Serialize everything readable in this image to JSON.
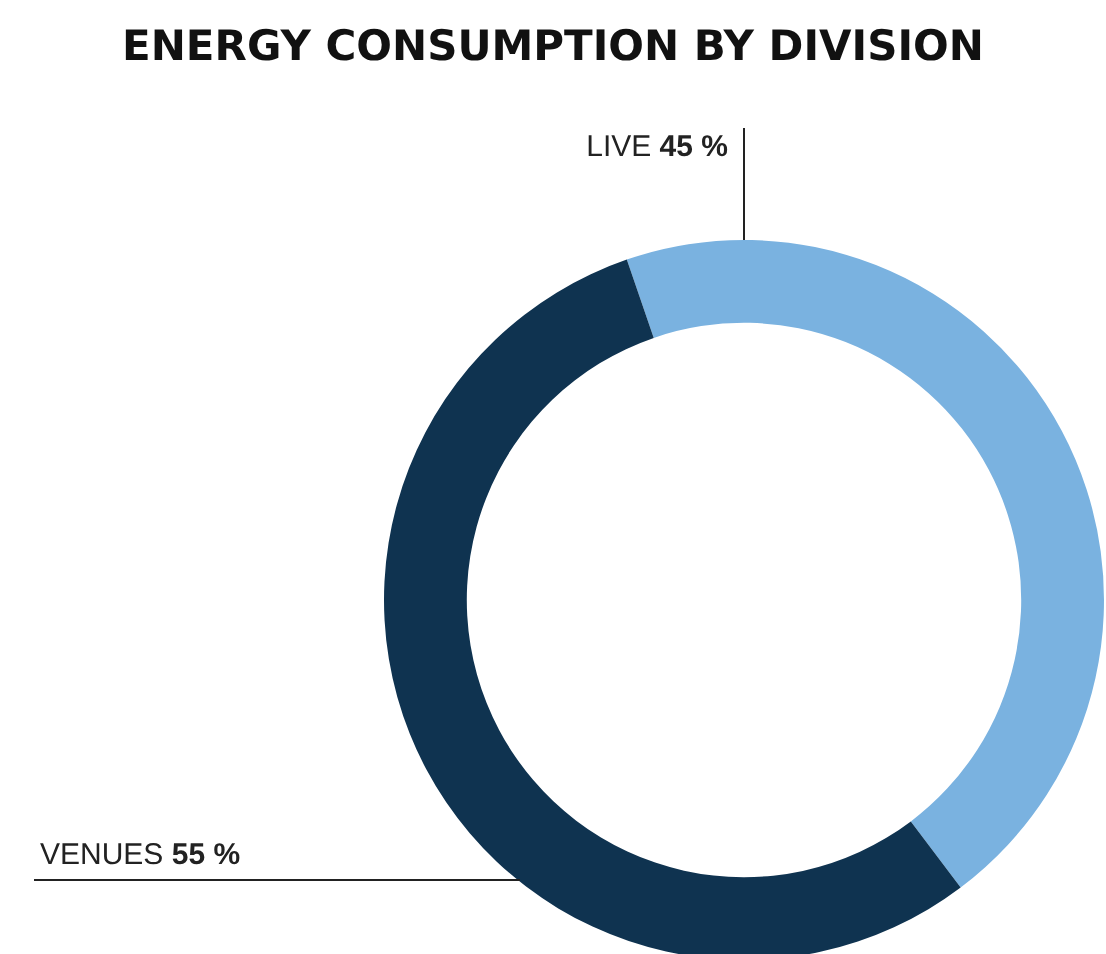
{
  "chart_data": {
    "type": "donut",
    "title": "ENERGY CONSUMPTION BY DIVISION",
    "categories": [
      "LIVE",
      "VENUES"
    ],
    "values": [
      45,
      55
    ],
    "value_labels": [
      "45 %",
      "55 %"
    ],
    "colors": [
      "#7ab2e0",
      "#0f3350"
    ]
  }
}
